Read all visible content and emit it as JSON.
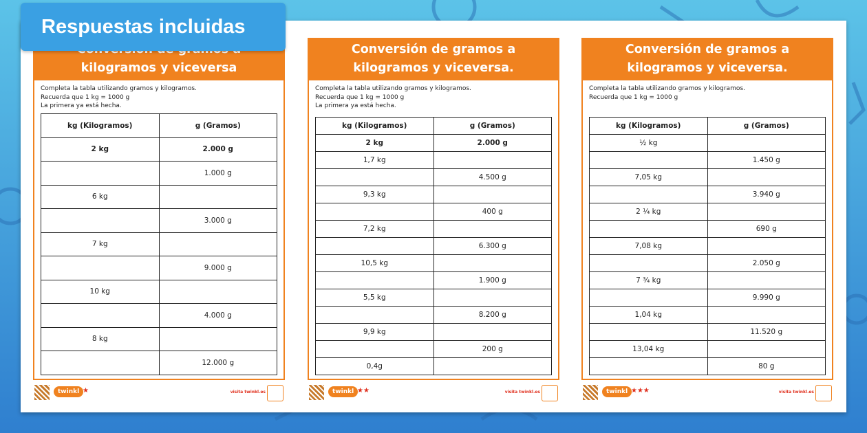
{
  "banner": "Respuestas incluidas",
  "sheets": [
    {
      "title": "Conversión de gramos a kilogramos y viceversa",
      "instructions": [
        "Completa la tabla utilizando gramos y kilogramos.",
        "Recuerda que 1 kg = 1000 g",
        "La primera ya está hecha."
      ],
      "table": {
        "header": [
          "kg (Kilogramos)",
          "g (Gramos)"
        ],
        "rows": [
          {
            "kg": "2 kg",
            "g": "2.000 g"
          },
          {
            "g": "1.000 g"
          },
          {
            "kg": "6 kg"
          },
          {
            "g": "3.000 g"
          },
          {
            "kg": "7 kg"
          },
          {
            "g": "9.000 g"
          },
          {
            "kg": "10 kg"
          },
          {
            "g": "4.000 g"
          },
          {
            "kg": "8 kg"
          },
          {
            "g": "12.000 g"
          }
        ]
      },
      "footer": {
        "brand": "twinkl",
        "stars": "★",
        "site": "visita twinkl.es"
      }
    },
    {
      "title": "Conversión de gramos a kilogramos y viceversa.",
      "instructions": [
        "Completa la tabla utilizando gramos y kilogramos.",
        "Recuerda que 1 kg = 1000 g",
        "La primera ya está hecha."
      ],
      "table": {
        "header": [
          "kg (Kilogramos)",
          "g (Gramos)"
        ],
        "rows": [
          {
            "kg": "2 kg",
            "g": "2.000 g"
          },
          {
            "kg": "1,7 kg"
          },
          {
            "g": "4.500 g"
          },
          {
            "kg": "9,3 kg"
          },
          {
            "g": "400 g"
          },
          {
            "kg": "7,2 kg"
          },
          {
            "g": "6.300 g"
          },
          {
            "kg": "10,5 kg"
          },
          {
            "g": "1.900 g"
          },
          {
            "kg": "5,5 kg"
          },
          {
            "g": "8.200 g"
          },
          {
            "kg": "9,9 kg"
          },
          {
            "g": "200 g"
          },
          {
            "kg": "0,4g"
          }
        ]
      },
      "footer": {
        "brand": "twinkl",
        "stars": "★★",
        "site": "visita twinkl.es"
      }
    },
    {
      "title": "Conversión de gramos a kilogramos y viceversa.",
      "instructions": [
        "Completa la tabla utilizando gramos y kilogramos.",
        "Recuerda que 1 kg = 1000 g"
      ],
      "table": {
        "header": [
          "kg (Kilogramos)",
          "g (Gramos)"
        ],
        "rows": [
          {
            "kg": "½ kg"
          },
          {
            "g": "1.450 g"
          },
          {
            "kg": "7,05 kg"
          },
          {
            "g": "3.940 g"
          },
          {
            "kg": "2 ¼ kg"
          },
          {
            "g": "690 g"
          },
          {
            "kg": "7,08 kg"
          },
          {
            "g": "2.050 g"
          },
          {
            "kg": "7 ¾ kg"
          },
          {
            "g": "9.990 g"
          },
          {
            "kg": "1,04 kg"
          },
          {
            "g": "11.520 g"
          },
          {
            "kg": "13,04 kg"
          },
          {
            "g": "80 g"
          }
        ]
      },
      "footer": {
        "brand": "twinkl",
        "stars": "★★★",
        "site": "visita twinkl.es"
      }
    }
  ]
}
